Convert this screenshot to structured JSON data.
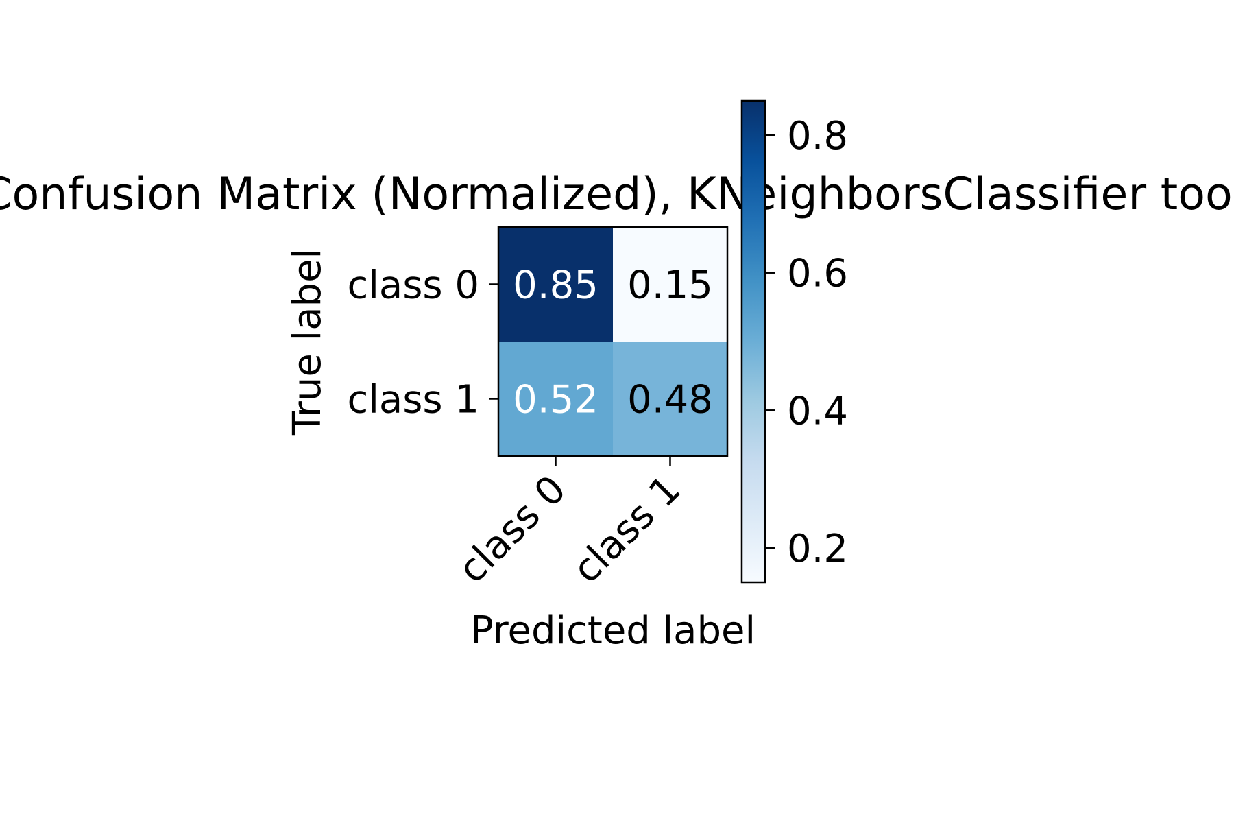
{
  "chart_data": {
    "type": "heatmap",
    "title": "Confusion Matrix (Normalized), KNeighborsClassifier tool",
    "xlabel": "Predicted label",
    "ylabel": "True label",
    "x_categories": [
      "class 0",
      "class 1"
    ],
    "y_categories": [
      "class 0",
      "class 1"
    ],
    "values": [
      [
        0.85,
        0.15
      ],
      [
        0.52,
        0.48
      ]
    ],
    "cell_labels": [
      [
        "0.85",
        "0.15"
      ],
      [
        "0.52",
        "0.48"
      ]
    ],
    "colormap": "Blues",
    "colorbar": {
      "range": [
        0.15,
        0.85
      ],
      "ticks": [
        0.2,
        0.4,
        0.6,
        0.8
      ],
      "tick_labels": [
        "0.2",
        "0.4",
        "0.6",
        "0.8"
      ]
    },
    "grid": false
  }
}
